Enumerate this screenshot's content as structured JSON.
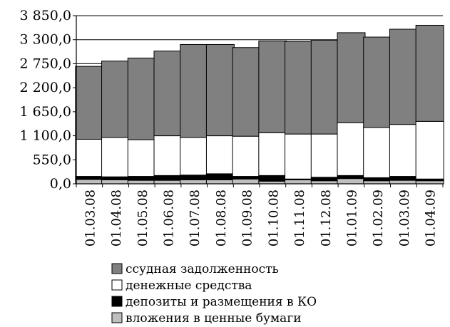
{
  "chart_data": {
    "type": "bar",
    "stacked": true,
    "categories": [
      "01.03.08",
      "01.04.08",
      "01.05.08",
      "01.06.08",
      "01.07.08",
      "01.08.08",
      "01.09.08",
      "01.10.08",
      "01.11.08",
      "01.12.08",
      "01.01.09",
      "01.02.09",
      "01.03.09",
      "01.04.09"
    ],
    "y_ticks": [
      "0,0",
      "550,0",
      "1 100,0",
      "1 650,0",
      "2 200,0",
      "2 750,0",
      "3 300,0",
      "3 850,0"
    ],
    "ylim": [
      0,
      3850
    ],
    "grid": "horizontal",
    "legend_position": "bottom",
    "series": [
      {
        "name": "вложения в ценные бумаги",
        "color": "#bfbfbf",
        "values": [
          100,
          90,
          80,
          80,
          90,
          90,
          110,
          60,
          90,
          70,
          120,
          70,
          80,
          70
        ]
      },
      {
        "name": "депозиты и размещения в КО",
        "color": "#000000",
        "values": [
          70,
          70,
          90,
          110,
          110,
          140,
          60,
          130,
          20,
          80,
          70,
          70,
          90,
          40
        ]
      },
      {
        "name": "денежные средства",
        "color": "#ffffff",
        "values": [
          850,
          900,
          840,
          910,
          860,
          870,
          920,
          980,
          1030,
          990,
          1210,
          1150,
          1190,
          1320
        ]
      },
      {
        "name": "ссудная задолженность",
        "color": "#808080",
        "values": [
          1670,
          1750,
          1870,
          1940,
          2130,
          2090,
          2030,
          2100,
          2120,
          2150,
          2060,
          2070,
          2180,
          2200
        ]
      }
    ]
  }
}
